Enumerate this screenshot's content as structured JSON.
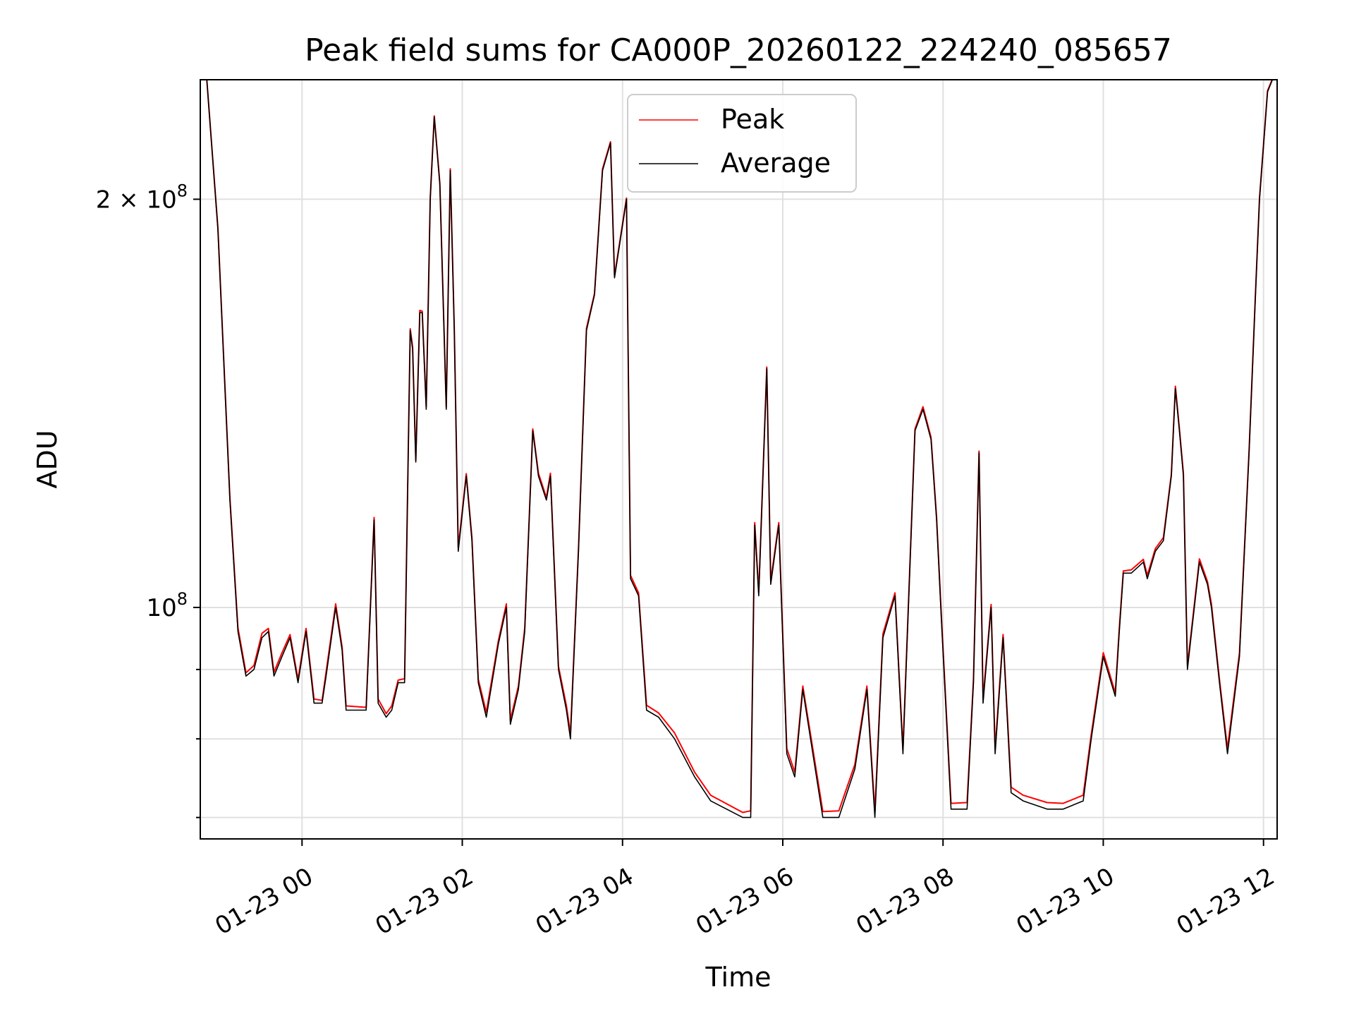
{
  "chart_data": {
    "type": "line",
    "title": "Peak field sums for CA000P_20260122_224240_085657",
    "xlabel": "Time",
    "ylabel": "ADU",
    "yscale": "log",
    "xlim_hours": [
      -1.27,
      12.17
    ],
    "ylim": [
      67500000,
      245000000
    ],
    "grid": true,
    "legend": {
      "position": "top-center",
      "entries": [
        "Peak",
        "Average"
      ]
    },
    "x_ticks": [
      {
        "hours": 0,
        "label": "01-23 00"
      },
      {
        "hours": 2,
        "label": "01-23 02"
      },
      {
        "hours": 4,
        "label": "01-23 04"
      },
      {
        "hours": 6,
        "label": "01-23 06"
      },
      {
        "hours": 8,
        "label": "01-23 08"
      },
      {
        "hours": 10,
        "label": "01-23 10"
      },
      {
        "hours": 12,
        "label": "01-23 12"
      }
    ],
    "y_major_ticks": [
      {
        "value": 100000000,
        "mantissa": "",
        "base": "10",
        "exp": "8"
      },
      {
        "value": 200000000,
        "mantissa": "2 × ",
        "base": "10",
        "exp": "8"
      }
    ],
    "y_minor_ticks": [
      70000000,
      80000000,
      90000000
    ],
    "series": [
      {
        "name": "Average",
        "color": "#000000",
        "hours": [
          -1.2,
          -1.05,
          -0.9,
          -0.8,
          -0.7,
          -0.6,
          -0.5,
          -0.42,
          -0.35,
          -0.25,
          -0.15,
          -0.05,
          0.05,
          0.15,
          0.25,
          0.3,
          0.42,
          0.5,
          0.55,
          0.8,
          0.9,
          0.95,
          1.05,
          1.12,
          1.2,
          1.28,
          1.35,
          1.38,
          1.42,
          1.47,
          1.5,
          1.55,
          1.6,
          1.65,
          1.72,
          1.8,
          1.85,
          1.9,
          1.95,
          2.05,
          2.12,
          2.2,
          2.3,
          2.45,
          2.55,
          2.6,
          2.7,
          2.78,
          2.88,
          2.95,
          3.05,
          3.1,
          3.2,
          3.3,
          3.35,
          3.45,
          3.55,
          3.65,
          3.75,
          3.85,
          3.9,
          4.05,
          4.1,
          4.2,
          4.3,
          4.45,
          4.65,
          4.9,
          5.1,
          5.5,
          5.6,
          5.65,
          5.7,
          5.8,
          5.85,
          5.95,
          6.05,
          6.15,
          6.25,
          6.5,
          6.7,
          6.9,
          7.05,
          7.15,
          7.25,
          7.4,
          7.5,
          7.65,
          7.75,
          7.85,
          7.92,
          7.98,
          8.1,
          8.3,
          8.38,
          8.45,
          8.5,
          8.6,
          8.65,
          8.75,
          8.85,
          9.0,
          9.3,
          9.5,
          9.75,
          9.85,
          10.0,
          10.15,
          10.2,
          10.25,
          10.35,
          10.5,
          10.55,
          10.65,
          10.75,
          10.85,
          10.9,
          10.95,
          11.0,
          11.05,
          11.12,
          11.2,
          11.3,
          11.35,
          11.45,
          11.55,
          11.7,
          11.82,
          11.9,
          11.95,
          12.05,
          12.17
        ],
        "values": [
          250000000,
          190000000,
          120000000,
          96000000,
          89000000,
          90000000,
          95000000,
          96000000,
          89000000,
          92000000,
          95000000,
          88000000,
          96000000,
          85000000,
          85000000,
          89000000,
          100000000,
          93000000,
          84000000,
          84000000,
          116000000,
          85000000,
          83000000,
          84000000,
          88000000,
          88000000,
          160000000,
          155000000,
          128000000,
          165000000,
          165000000,
          140000000,
          200000000,
          230000000,
          205000000,
          140000000,
          210000000,
          160000000,
          110000000,
          125000000,
          112000000,
          88000000,
          83000000,
          94000000,
          100000000,
          82000000,
          87000000,
          96000000,
          135000000,
          125000000,
          120000000,
          125000000,
          90000000,
          84000000,
          80000000,
          110000000,
          160000000,
          170000000,
          210000000,
          220000000,
          175000000,
          200000000,
          105000000,
          102000000,
          84000000,
          83000000,
          80000000,
          75000000,
          72000000,
          70000000,
          70000000,
          115000000,
          102000000,
          150000000,
          104000000,
          115000000,
          78000000,
          75000000,
          87000000,
          70000000,
          70000000,
          76000000,
          87000000,
          70000000,
          95000000,
          102000000,
          78000000,
          135000000,
          140000000,
          133000000,
          116000000,
          98000000,
          71000000,
          71000000,
          88000000,
          130000000,
          85000000,
          100000000,
          78000000,
          95000000,
          73000000,
          72000000,
          71000000,
          71000000,
          72000000,
          80000000,
          92000000,
          86000000,
          96000000,
          106000000,
          106000000,
          108000000,
          105000000,
          110000000,
          112000000,
          125000000,
          145000000,
          135000000,
          125000000,
          90000000,
          98000000,
          108000000,
          104000000,
          100000000,
          88000000,
          78000000,
          92000000,
          130000000,
          170000000,
          200000000,
          240000000,
          250000000
        ]
      },
      {
        "name": "Peak",
        "color": "#ff0000",
        "hours": [
          -1.2,
          -1.05,
          -0.9,
          -0.8,
          -0.7,
          -0.6,
          -0.5,
          -0.42,
          -0.35,
          -0.25,
          -0.15,
          -0.05,
          0.05,
          0.15,
          0.25,
          0.3,
          0.42,
          0.5,
          0.55,
          0.8,
          0.9,
          0.95,
          1.05,
          1.12,
          1.2,
          1.28,
          1.35,
          1.38,
          1.42,
          1.47,
          1.5,
          1.55,
          1.6,
          1.65,
          1.72,
          1.8,
          1.85,
          1.9,
          1.95,
          2.05,
          2.12,
          2.2,
          2.3,
          2.45,
          2.55,
          2.6,
          2.7,
          2.78,
          2.88,
          2.95,
          3.05,
          3.1,
          3.2,
          3.3,
          3.35,
          3.45,
          3.55,
          3.65,
          3.75,
          3.85,
          3.9,
          4.05,
          4.1,
          4.2,
          4.3,
          4.45,
          4.65,
          4.9,
          5.1,
          5.5,
          5.6,
          5.65,
          5.7,
          5.8,
          5.85,
          5.95,
          6.05,
          6.15,
          6.25,
          6.5,
          6.7,
          6.9,
          7.05,
          7.15,
          7.25,
          7.4,
          7.5,
          7.65,
          7.75,
          7.85,
          7.92,
          7.98,
          8.1,
          8.3,
          8.38,
          8.45,
          8.5,
          8.6,
          8.65,
          8.75,
          8.85,
          9.0,
          9.3,
          9.5,
          9.75,
          9.85,
          10.0,
          10.15,
          10.2,
          10.25,
          10.35,
          10.5,
          10.55,
          10.65,
          10.75,
          10.85,
          10.9,
          10.95,
          11.0,
          11.05,
          11.12,
          11.2,
          11.3,
          11.35,
          11.45,
          11.55,
          11.7,
          11.82,
          11.9,
          11.95,
          12.05,
          12.17
        ],
        "values": [
          250000000,
          190500000,
          120500000,
          96600000,
          89500000,
          90600000,
          95700000,
          96500000,
          89600000,
          92600000,
          95500000,
          88500000,
          96500000,
          85600000,
          85400000,
          89600000,
          100600000,
          93500000,
          84600000,
          84400000,
          116500000,
          85600000,
          83500000,
          84600000,
          88400000,
          88600000,
          160500000,
          155600000,
          128400000,
          165600000,
          165400000,
          140600000,
          200500000,
          230400000,
          205600000,
          140500000,
          210600000,
          160400000,
          110600000,
          125500000,
          112600000,
          88500000,
          83700000,
          94500000,
          100600000,
          82600000,
          87500000,
          96600000,
          135400000,
          125600000,
          120500000,
          125600000,
          90500000,
          84600000,
          80700000,
          110500000,
          160600000,
          170400000,
          210600000,
          220500000,
          175600000,
          200400000,
          105600000,
          102500000,
          84700000,
          83600000,
          80800000,
          75600000,
          72700000,
          70600000,
          70800000,
          115500000,
          102600000,
          150400000,
          104600000,
          115500000,
          78700000,
          75600000,
          87500000,
          70700000,
          70800000,
          76600000,
          87500000,
          70700000,
          95600000,
          102500000,
          78600000,
          135400000,
          140600000,
          133500000,
          116600000,
          98500000,
          71700000,
          71800000,
          88500000,
          130400000,
          85600000,
          100500000,
          78600000,
          95500000,
          73700000,
          72700000,
          71800000,
          71700000,
          72700000,
          80600000,
          92600000,
          86500000,
          96600000,
          106400000,
          106600000,
          108500000,
          105600000,
          110500000,
          112600000,
          125400000,
          145600000,
          135500000,
          125600000,
          90600000,
          98500000,
          108600000,
          104500000,
          100600000,
          88500000,
          78700000,
          92600000,
          130500000,
          170600000,
          200400000,
          240500000,
          250000000
        ]
      }
    ]
  }
}
